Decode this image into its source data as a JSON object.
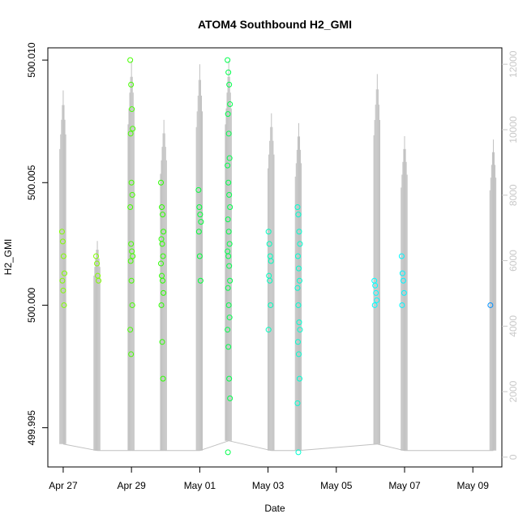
{
  "chart_data": {
    "type": "scatter",
    "title": "ATOM4 Southbound H2_GMI",
    "xlabel": "Date",
    "ylabel": "H2_GMI",
    "x_tick_labels": [
      "Apr 27",
      "Apr 29",
      "May 01",
      "May 03",
      "May 05",
      "May 07",
      "May 09"
    ],
    "x_tick_days": [
      27,
      29,
      31,
      33,
      35,
      37,
      39
    ],
    "xlim_days": [
      26.55,
      39.85
    ],
    "y_tick_labels": [
      "499.995",
      "500.000",
      "500.005",
      "500.010"
    ],
    "y_ticks": [
      499.995,
      500.0,
      500.005,
      500.01
    ],
    "ylim": [
      499.9934,
      500.0105
    ],
    "y2_tick_labels": [
      "0",
      "2000",
      "4000",
      "6000",
      "8000",
      "10000",
      "12000"
    ],
    "y2_ticks": [
      0,
      2000,
      4000,
      6000,
      8000,
      10000,
      12000
    ],
    "y2lim": [
      -300,
      12500
    ],
    "secondary_axis_color": "#c8c8c8",
    "trace_color": "#c0c0c0",
    "grid": false,
    "points": [
      {
        "day": 27.0,
        "ys": [
          500.003,
          500.0026,
          500.002,
          500.0013,
          500.001,
          500.0006,
          500.0
        ],
        "color": "#80ff00"
      },
      {
        "day": 28.0,
        "ys": [
          500.002,
          500.0017,
          500.0012,
          500.001
        ],
        "color": "#80ff00"
      },
      {
        "day": 29.0,
        "ys": [
          500.01,
          500.009,
          500.008,
          500.0072,
          500.007,
          500.005,
          500.0045,
          500.004,
          500.0025,
          500.0022,
          500.002,
          500.0018,
          500.001,
          500.0,
          499.999,
          499.998
        ],
        "color": "#46ff00"
      },
      {
        "day": 29.9,
        "ys": [
          500.005,
          500.004,
          500.0037,
          500.003,
          500.0027,
          500.0025,
          500.002,
          500.0017,
          500.0012,
          500.001,
          500.0005,
          500.0,
          499.9985,
          499.997
        ],
        "color": "#2bff00"
      },
      {
        "day": 31.0,
        "ys": [
          500.0047,
          500.004,
          500.0037,
          500.0034,
          500.003,
          500.002,
          500.001
        ],
        "color": "#00ff3a"
      },
      {
        "day": 31.85,
        "ys": [
          500.01,
          500.0095,
          500.009,
          500.0082,
          500.0078,
          500.007,
          500.006,
          500.0057,
          500.005,
          500.0045,
          500.004,
          500.0035,
          500.003,
          500.0025,
          500.0022,
          500.002,
          500.0016,
          500.001,
          500.0007,
          500.0,
          499.9995,
          499.999,
          499.9983,
          499.997,
          499.9962,
          499.994
        ],
        "color": "#00ff4c"
      },
      {
        "day": 33.05,
        "ys": [
          500.003,
          500.0025,
          500.002,
          500.0018,
          500.0012,
          500.001,
          500.0,
          499.999
        ],
        "color": "#00ffbe"
      },
      {
        "day": 33.9,
        "ys": [
          500.004,
          500.0037,
          500.003,
          500.0025,
          500.002,
          500.0015,
          500.001,
          500.0007,
          500.0,
          499.9993,
          499.999,
          499.9985,
          499.998,
          499.997,
          499.996,
          499.994
        ],
        "color": "#00ffd0"
      },
      {
        "day": 36.15,
        "ys": [
          500.001,
          500.0008,
          500.0005,
          500.0002,
          500.0
        ],
        "color": "#00ffff"
      },
      {
        "day": 36.95,
        "ys": [
          500.002,
          500.0013,
          500.001,
          500.0005,
          500.0
        ],
        "color": "#00f6ff"
      },
      {
        "day": 39.55,
        "ys": [
          500.0
        ],
        "color": "#0090ff"
      }
    ],
    "series_secondary": [
      {
        "day": 27.0,
        "peak": 11200,
        "low": 400
      },
      {
        "day": 28.0,
        "peak": 6600,
        "low": 200
      },
      {
        "day": 29.0,
        "peak": 12100,
        "low": 200
      },
      {
        "day": 29.95,
        "peak": 10300,
        "low": 200
      },
      {
        "day": 31.0,
        "peak": 12000,
        "low": 200
      },
      {
        "day": 31.85,
        "peak": 12100,
        "low": 500
      },
      {
        "day": 33.1,
        "peak": 10500,
        "low": 200
      },
      {
        "day": 33.9,
        "peak": 10200,
        "low": 200
      },
      {
        "day": 36.2,
        "peak": 11700,
        "low": 400
      },
      {
        "day": 37.0,
        "peak": 9800,
        "low": 200
      },
      {
        "day": 39.6,
        "peak": 9700,
        "low": 200
      }
    ]
  }
}
